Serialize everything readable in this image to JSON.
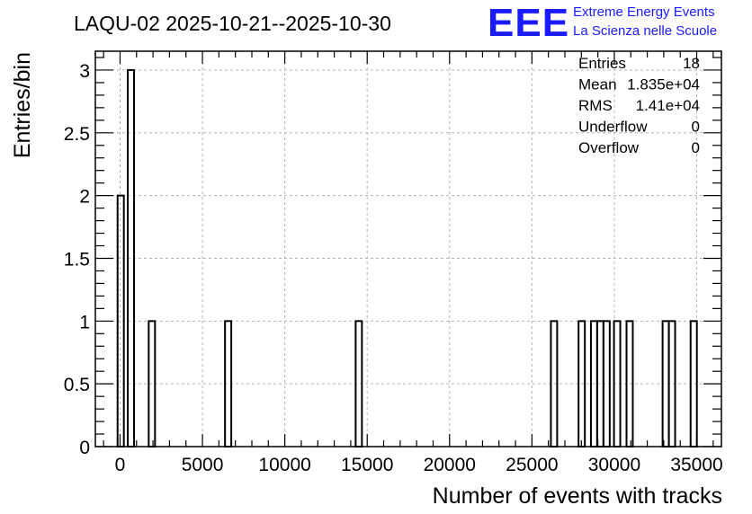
{
  "chart_data": {
    "type": "bar",
    "title": "LAQU-02 2025-10-21--2025-10-30",
    "xlabel": "Number of events with tracks",
    "ylabel": "Entries/bin",
    "xlim": [
      -1500,
      36500
    ],
    "ylim": [
      0,
      3.15
    ],
    "bin_width": 380,
    "x_ticks": [
      0,
      5000,
      10000,
      15000,
      20000,
      25000,
      30000,
      35000
    ],
    "y_ticks": [
      0,
      0.5,
      1,
      1.5,
      2,
      2.5,
      3
    ],
    "y_tick_labels": [
      "0",
      "0.5",
      "1",
      "1.5",
      "2",
      "2.5",
      "3"
    ],
    "grid": true,
    "bins": [
      {
        "x": -150,
        "count": 2
      },
      {
        "x": 470,
        "count": 3
      },
      {
        "x": 1740,
        "count": 1
      },
      {
        "x": 6370,
        "count": 1
      },
      {
        "x": 14300,
        "count": 1
      },
      {
        "x": 26150,
        "count": 1
      },
      {
        "x": 27830,
        "count": 1
      },
      {
        "x": 28580,
        "count": 1
      },
      {
        "x": 28960,
        "count": 1
      },
      {
        "x": 29340,
        "count": 1
      },
      {
        "x": 29980,
        "count": 1
      },
      {
        "x": 30740,
        "count": 1
      },
      {
        "x": 32930,
        "count": 1
      },
      {
        "x": 33310,
        "count": 1
      },
      {
        "x": 34630,
        "count": 1
      }
    ],
    "stats": [
      {
        "label": "Entries",
        "value": "18"
      },
      {
        "label": "Mean",
        "value": "1.835e+04"
      },
      {
        "label": "RMS",
        "value": "1.41e+04"
      },
      {
        "label": "Underflow",
        "value": "0"
      },
      {
        "label": "Overflow",
        "value": "0"
      }
    ]
  },
  "logo": {
    "mark": "EEE",
    "line1": "Extreme Energy Events",
    "line2": "La Scienza nelle Scuole",
    "color": "#1a1aff"
  }
}
